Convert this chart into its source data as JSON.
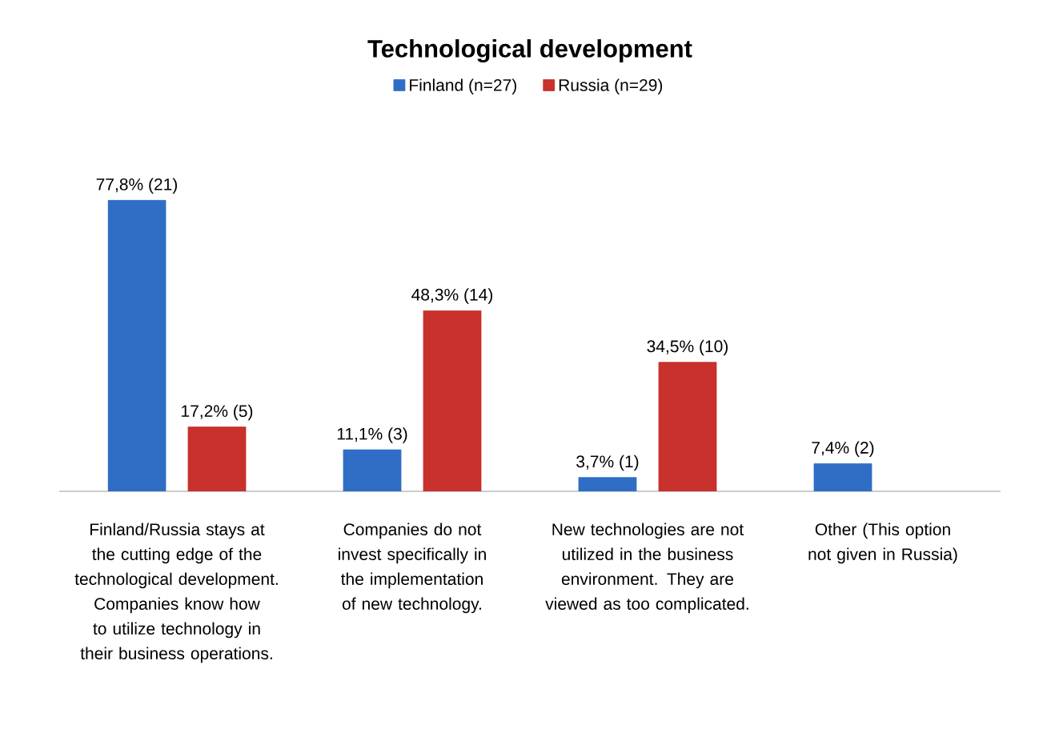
{
  "chart_data": {
    "type": "bar",
    "title": "Technological development",
    "categories": [
      "Finland/Russia stays at the cutting edge of the technological development. Companies know how to utilize technology in their business operations.",
      "Companies do not invest specifically in the implementation of new technology.",
      "New technologies are not utilized in the business environment. They are viewed as too complicated.",
      "Other (This option not given in Russia)"
    ],
    "series": [
      {
        "name": "Finland (n=27)",
        "color": "#2f6ec4",
        "values": [
          77.8,
          11.1,
          3.7,
          7.4
        ],
        "value_labels": [
          "77,8% (21)",
          "11,1% (3)",
          "3,7% (1)",
          "7,4% (2)"
        ]
      },
      {
        "name": "Russia (n=29)",
        "color": "#c8312c",
        "values": [
          17.2,
          48.3,
          34.5,
          null
        ],
        "value_labels": [
          "17,2% (5)",
          "48,3% (14)",
          "34,5% (10)",
          null
        ]
      }
    ],
    "legend": "top"
  }
}
